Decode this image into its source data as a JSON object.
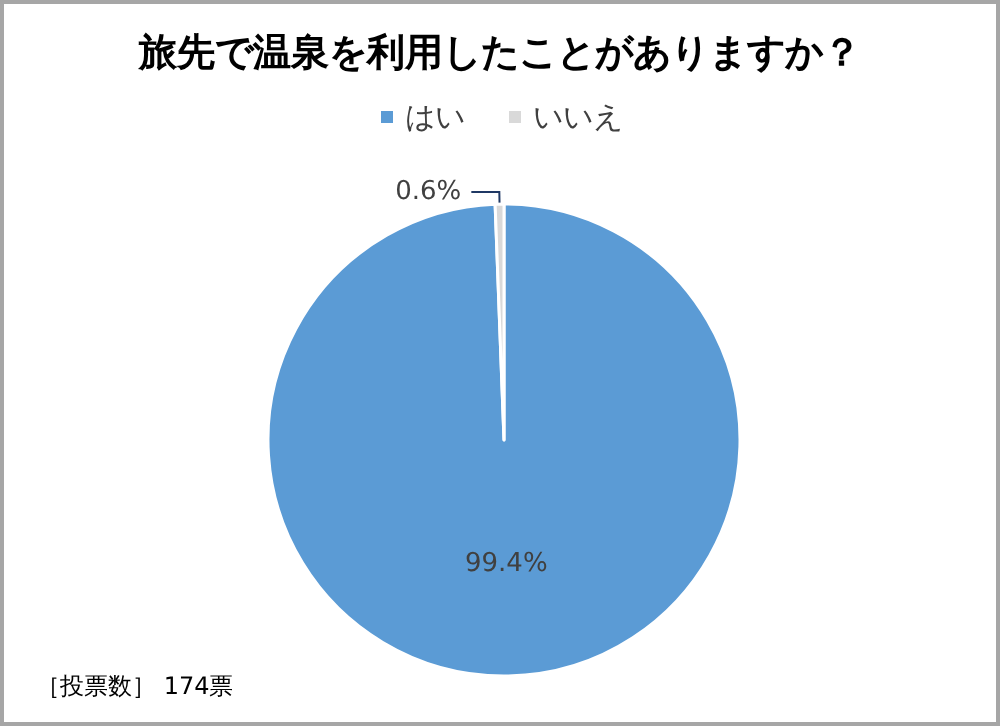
{
  "chart_data": {
    "type": "pie",
    "title": "旅先で温泉を利用したことがありますか？",
    "categories": [
      "はい",
      "いいえ"
    ],
    "values": [
      99.4,
      0.6
    ],
    "colors": [
      "#5b9bd5",
      "#d9d9d9"
    ],
    "value_labels": [
      "99.4%",
      "0.6%"
    ],
    "legend": "top",
    "annotations": [
      "［投票数］ 174票"
    ]
  }
}
